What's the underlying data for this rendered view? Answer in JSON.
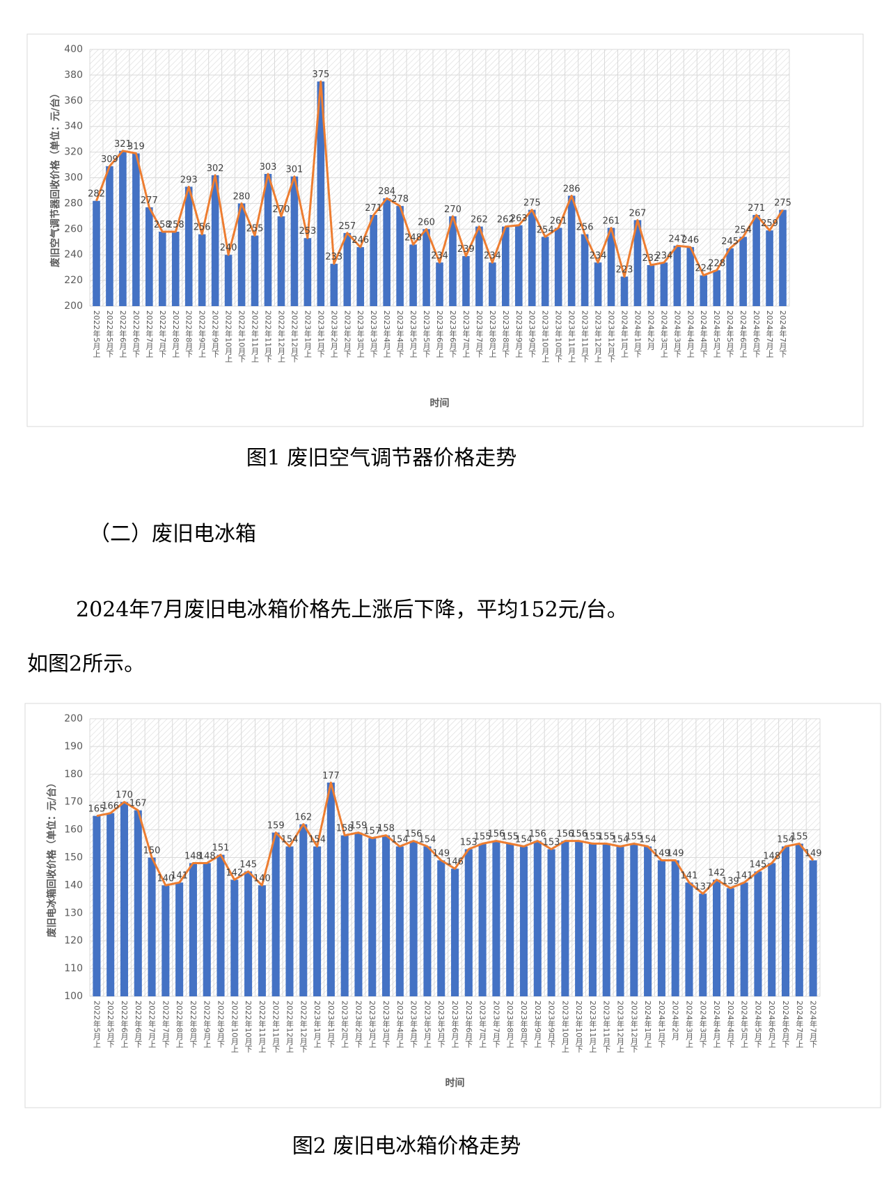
{
  "document": {
    "heading": "（二）废旧电冰箱",
    "paragraph": "2024年7月废旧电冰箱价格先上涨后下降，平均152元/台。",
    "paragraph_end": "如图2所示。"
  },
  "chart_data": [
    {
      "type": "bar",
      "caption": "图1  废旧空气调节器价格走势",
      "y_label": "废旧空气调节器回收价格（单位：元/台）",
      "x_label": "时间",
      "categories": [
        "2022年5月上",
        "2022年5月下",
        "2022年6月上",
        "2022年6月下",
        "2022年7月上",
        "2022年7月下",
        "2022年8月上",
        "2022年8月下",
        "2022年9月上",
        "2022年9月下",
        "2022年10月上",
        "2022年10月下",
        "2022年11月上",
        "2022年11月下",
        "2022年12月上",
        "2022年12月下",
        "2023年1月上",
        "2023年1月下",
        "2023年2月上",
        "2023年2月下",
        "2023年3月上",
        "2023年3月下",
        "2023年4月上",
        "2023年4月下",
        "2023年5月上",
        "2023年5月下",
        "2023年6月上",
        "2023年6月下",
        "2023年7月上",
        "2023年7月下",
        "2023年8月上",
        "2023年8月下",
        "2023年9月上",
        "2023年9月下",
        "2023年10月上",
        "2023年10月下",
        "2023年11月上",
        "2023年11月下",
        "2023年12月上",
        "2023年12月下",
        "2024年1月上",
        "2024年1月下",
        "2024年2月",
        "2024年3月上",
        "2024年3月下",
        "2024年4月上",
        "2024年4月下",
        "2024年5月上",
        "2024年5月下",
        "2024年6月上",
        "2024年6月下",
        "2024年7月上",
        "2024年7月下"
      ],
      "values": [
        282,
        309,
        321,
        319,
        277,
        258,
        258,
        293,
        256,
        302,
        240,
        280,
        255,
        303,
        270,
        301,
        253,
        375,
        233,
        257,
        246,
        271,
        284,
        278,
        248,
        260,
        234,
        270,
        239,
        262,
        234,
        262,
        263,
        275,
        254,
        261,
        286,
        256,
        234,
        261,
        223,
        267,
        232,
        234,
        247,
        246,
        224,
        228,
        245,
        254,
        271,
        259,
        275
      ],
      "color": "#4472c4",
      "line_color": "#ed7d31",
      "ylim": [
        200,
        400
      ],
      "yticks": [
        200,
        220,
        240,
        260,
        280,
        300,
        320,
        340,
        360,
        380,
        400
      ],
      "grid": true
    },
    {
      "type": "bar",
      "caption": "图2  废旧电冰箱价格走势",
      "y_label": "废旧电冰箱回收价格（单位：元/台）",
      "x_label": "时间",
      "categories": [
        "2022年5月上",
        "2022年5月下",
        "2022年6月上",
        "2022年6月下",
        "2022年7月上",
        "2022年7月下",
        "2022年8月上",
        "2022年8月下",
        "2022年9月上",
        "2022年9月下",
        "2022年10月上",
        "2022年10月下",
        "2022年11月上",
        "2022年11月下",
        "2022年12月上",
        "2022年12月下",
        "2023年1月上",
        "2023年1月下",
        "2023年2月上",
        "2023年2月下",
        "2023年3月上",
        "2023年3月下",
        "2023年4月上",
        "2023年4月下",
        "2023年5月上",
        "2023年5月下",
        "2023年6月上",
        "2023年6月下",
        "2023年7月上",
        "2023年7月下",
        "2023年8月上",
        "2023年8月下",
        "2023年9月上",
        "2023年9月下",
        "2023年10月上",
        "2023年10月下",
        "2023年11月上",
        "2023年11月下",
        "2023年12月上",
        "2023年12月下",
        "2024年1月上",
        "2024年1月下",
        "2024年2月",
        "2024年3月上",
        "2024年3月下",
        "2024年4月上",
        "2024年4月下",
        "2024年5月上",
        "2024年5月下",
        "2024年6月上",
        "2024年6月下",
        "2024年7月上",
        "2024年7月下"
      ],
      "values": [
        165,
        166,
        170,
        167,
        150,
        140,
        141,
        148,
        148,
        151,
        142,
        145,
        140,
        159,
        154,
        162,
        154,
        177,
        158,
        159,
        157,
        158,
        154,
        156,
        154,
        149,
        146,
        153,
        155,
        156,
        155,
        154,
        156,
        153,
        156,
        156,
        155,
        155,
        154,
        155,
        154,
        149,
        149,
        141,
        137,
        142,
        139,
        141,
        145,
        148,
        154,
        155,
        149
      ],
      "color": "#4472c4",
      "line_color": "#ed7d31",
      "ylim": [
        100,
        200
      ],
      "yticks": [
        100,
        110,
        120,
        130,
        140,
        150,
        160,
        170,
        180,
        190,
        200
      ],
      "grid": true
    }
  ]
}
